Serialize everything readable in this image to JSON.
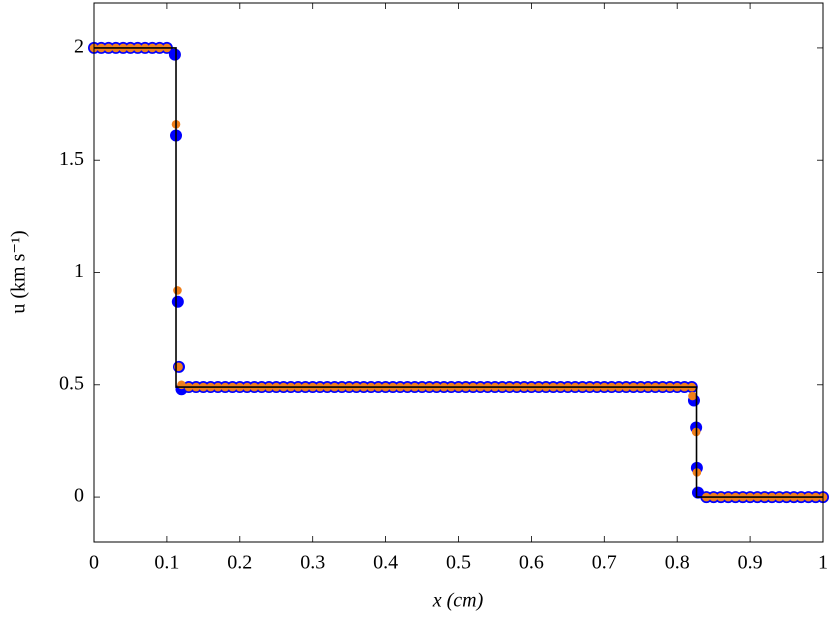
{
  "chart_data": {
    "type": "scatter",
    "xlabel": "x (cm)",
    "ylabel": "u (km s⁻¹)",
    "xlim": [
      0,
      1
    ],
    "ylim": [
      -0.2,
      2.2
    ],
    "xticks": [
      0,
      0.1,
      0.2,
      0.3,
      0.4,
      0.5,
      0.6,
      0.7,
      0.8,
      0.9,
      1
    ],
    "yticks": [
      0,
      0.5,
      1,
      1.5,
      2
    ],
    "grid": false,
    "series": [
      {
        "type": "scatter",
        "color": "#0000ff",
        "x": [
          0,
          0.01,
          0.02,
          0.03,
          0.04,
          0.05,
          0.06,
          0.07,
          0.08,
          0.09,
          0.1,
          0.111,
          0.1125,
          0.115,
          0.1166,
          0.12,
          0.13,
          0.14,
          0.15,
          0.16,
          0.17,
          0.18,
          0.19,
          0.2,
          0.21,
          0.22,
          0.23,
          0.24,
          0.25,
          0.26,
          0.27,
          0.28,
          0.29,
          0.3,
          0.31,
          0.32,
          0.33,
          0.34,
          0.35,
          0.36,
          0.37,
          0.38,
          0.39,
          0.4,
          0.41,
          0.42,
          0.43,
          0.44,
          0.45,
          0.46,
          0.47,
          0.48,
          0.49,
          0.5,
          0.51,
          0.52,
          0.53,
          0.54,
          0.55,
          0.56,
          0.57,
          0.58,
          0.59,
          0.6,
          0.61,
          0.62,
          0.63,
          0.64,
          0.65,
          0.66,
          0.67,
          0.68,
          0.69,
          0.7,
          0.71,
          0.72,
          0.73,
          0.74,
          0.75,
          0.76,
          0.77,
          0.78,
          0.79,
          0.8,
          0.81,
          0.82,
          0.823,
          0.826,
          0.827,
          0.8285,
          0.84,
          0.85,
          0.86,
          0.87,
          0.88,
          0.89,
          0.9,
          0.91,
          0.92,
          0.93,
          0.94,
          0.95,
          0.96,
          0.97,
          0.98,
          0.99,
          1
        ],
        "values": [
          2,
          2,
          2,
          2,
          2,
          2,
          2,
          2,
          2,
          2,
          2,
          1.97,
          1.61,
          0.87,
          0.58,
          0.48,
          0.49,
          0.49,
          0.49,
          0.49,
          0.49,
          0.49,
          0.49,
          0.49,
          0.49,
          0.49,
          0.49,
          0.49,
          0.49,
          0.49,
          0.49,
          0.49,
          0.49,
          0.49,
          0.49,
          0.49,
          0.49,
          0.49,
          0.49,
          0.49,
          0.49,
          0.49,
          0.49,
          0.49,
          0.49,
          0.49,
          0.49,
          0.49,
          0.49,
          0.49,
          0.49,
          0.49,
          0.49,
          0.49,
          0.49,
          0.49,
          0.49,
          0.49,
          0.49,
          0.49,
          0.49,
          0.49,
          0.49,
          0.49,
          0.49,
          0.49,
          0.49,
          0.49,
          0.49,
          0.49,
          0.49,
          0.49,
          0.49,
          0.49,
          0.49,
          0.49,
          0.49,
          0.49,
          0.49,
          0.49,
          0.49,
          0.49,
          0.49,
          0.49,
          0.49,
          0.49,
          0.43,
          0.31,
          0.13,
          0.02,
          0,
          0,
          0,
          0,
          0,
          0,
          0,
          0,
          0,
          0,
          0,
          0,
          0,
          0,
          0,
          0,
          0
        ]
      },
      {
        "type": "scatter",
        "color": "#f07f1a",
        "x": [
          0,
          0.01,
          0.02,
          0.03,
          0.04,
          0.05,
          0.06,
          0.07,
          0.08,
          0.09,
          0.1,
          0.1125,
          0.1145,
          0.116,
          0.12,
          0.13,
          0.14,
          0.15,
          0.16,
          0.17,
          0.18,
          0.19,
          0.2,
          0.21,
          0.22,
          0.23,
          0.24,
          0.25,
          0.26,
          0.27,
          0.28,
          0.29,
          0.3,
          0.31,
          0.32,
          0.33,
          0.34,
          0.35,
          0.36,
          0.37,
          0.38,
          0.39,
          0.4,
          0.41,
          0.42,
          0.43,
          0.44,
          0.45,
          0.46,
          0.47,
          0.48,
          0.49,
          0.5,
          0.51,
          0.52,
          0.53,
          0.54,
          0.55,
          0.56,
          0.57,
          0.58,
          0.59,
          0.6,
          0.61,
          0.62,
          0.63,
          0.64,
          0.65,
          0.66,
          0.67,
          0.68,
          0.69,
          0.7,
          0.71,
          0.72,
          0.73,
          0.74,
          0.75,
          0.76,
          0.77,
          0.78,
          0.79,
          0.8,
          0.81,
          0.82,
          0.821,
          0.826,
          0.827,
          0.84,
          0.85,
          0.86,
          0.87,
          0.88,
          0.89,
          0.9,
          0.91,
          0.92,
          0.93,
          0.94,
          0.95,
          0.96,
          0.97,
          0.98,
          0.99,
          1
        ],
        "values": [
          2,
          2,
          2,
          2,
          2,
          2,
          2,
          2,
          2,
          2,
          2,
          1.66,
          0.92,
          0.58,
          0.5,
          0.49,
          0.49,
          0.49,
          0.49,
          0.49,
          0.49,
          0.49,
          0.49,
          0.49,
          0.49,
          0.49,
          0.49,
          0.49,
          0.49,
          0.49,
          0.49,
          0.49,
          0.49,
          0.49,
          0.49,
          0.49,
          0.49,
          0.49,
          0.49,
          0.49,
          0.49,
          0.49,
          0.49,
          0.49,
          0.49,
          0.49,
          0.49,
          0.49,
          0.49,
          0.49,
          0.49,
          0.49,
          0.49,
          0.49,
          0.49,
          0.49,
          0.49,
          0.49,
          0.49,
          0.49,
          0.49,
          0.49,
          0.49,
          0.49,
          0.49,
          0.49,
          0.49,
          0.49,
          0.49,
          0.49,
          0.49,
          0.49,
          0.49,
          0.49,
          0.49,
          0.49,
          0.49,
          0.49,
          0.49,
          0.49,
          0.49,
          0.49,
          0.49,
          0.49,
          0.49,
          0.45,
          0.29,
          0.11,
          0,
          0,
          0,
          0,
          0,
          0,
          0,
          0,
          0,
          0,
          0,
          0,
          0,
          0,
          0,
          0,
          0
        ]
      },
      {
        "type": "line",
        "color": "#000000",
        "x": [
          0,
          0.1125,
          0.1125,
          0.8265,
          0.8265,
          1
        ],
        "values": [
          2,
          2,
          0.49,
          0.49,
          0,
          0
        ]
      }
    ]
  }
}
